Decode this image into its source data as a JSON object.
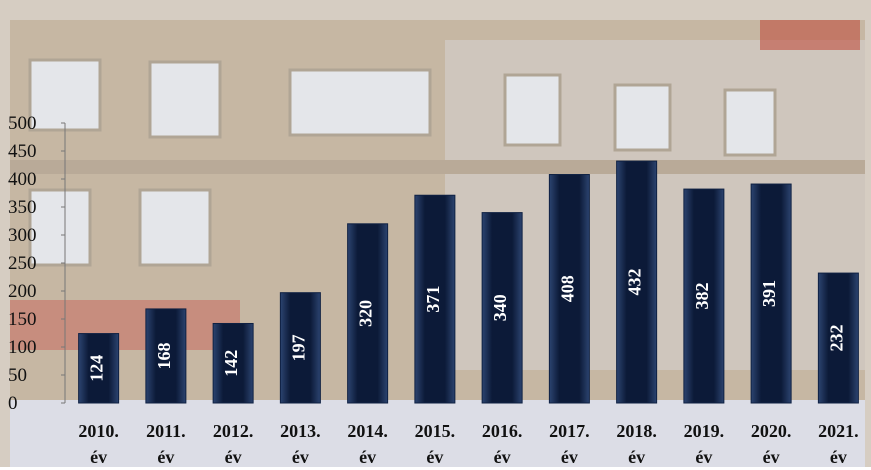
{
  "chart_data": {
    "type": "bar",
    "categories": [
      "2010. év",
      "2011. év",
      "2012. év",
      "2013. év",
      "2014. év",
      "2015. év",
      "2016. év",
      "2017. év",
      "2018. év",
      "2019. év",
      "2020. év",
      "2021. év"
    ],
    "values": [
      124,
      168,
      142,
      197,
      320,
      371,
      340,
      408,
      432,
      382,
      391,
      232
    ],
    "color": "#0f2143",
    "ylim": [
      0,
      500
    ],
    "yticks": [
      0,
      50,
      100,
      150,
      200,
      250,
      300,
      350,
      400,
      450,
      500
    ]
  }
}
